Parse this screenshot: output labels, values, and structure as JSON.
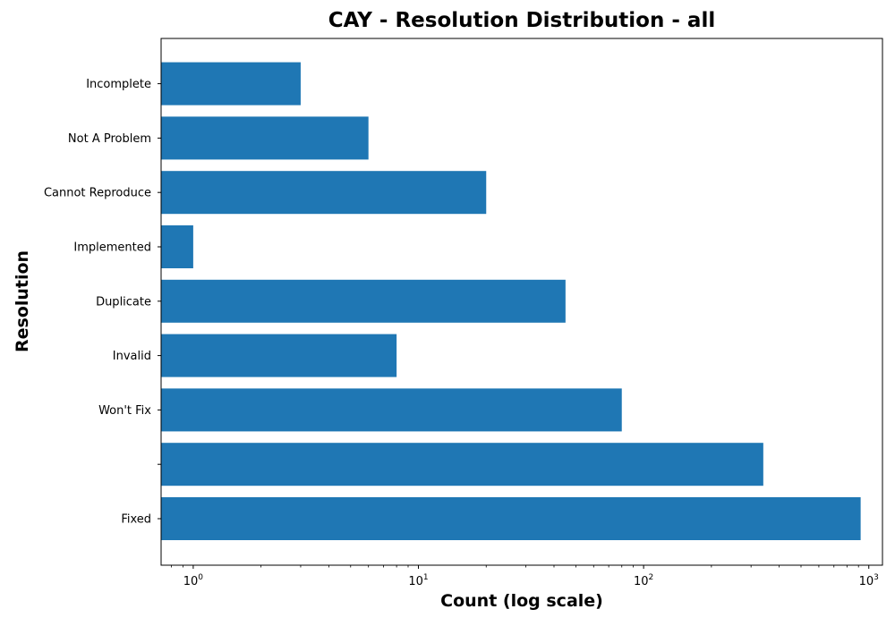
{
  "chart_data": {
    "type": "bar",
    "orientation": "horizontal",
    "title": "CAY - Resolution Distribution - all",
    "xlabel": "Count (log scale)",
    "ylabel": "Resolution",
    "x_scale": "log",
    "xlim": [
      0.72,
      1150
    ],
    "x_ticks": [
      1,
      10,
      100,
      1000
    ],
    "x_tick_labels": [
      {
        "base": "10",
        "exp": "0"
      },
      {
        "base": "10",
        "exp": "1"
      },
      {
        "base": "10",
        "exp": "2"
      },
      {
        "base": "10",
        "exp": "3"
      }
    ],
    "categories": [
      "Fixed",
      "",
      "Won't Fix",
      "Invalid",
      "Duplicate",
      "Implemented",
      "Cannot Reproduce",
      "Not A Problem",
      "Incomplete"
    ],
    "values": [
      920,
      340,
      80,
      8,
      45,
      1,
      20,
      6,
      3
    ],
    "color": "#1f77b4",
    "grid": false,
    "legend": "none"
  }
}
